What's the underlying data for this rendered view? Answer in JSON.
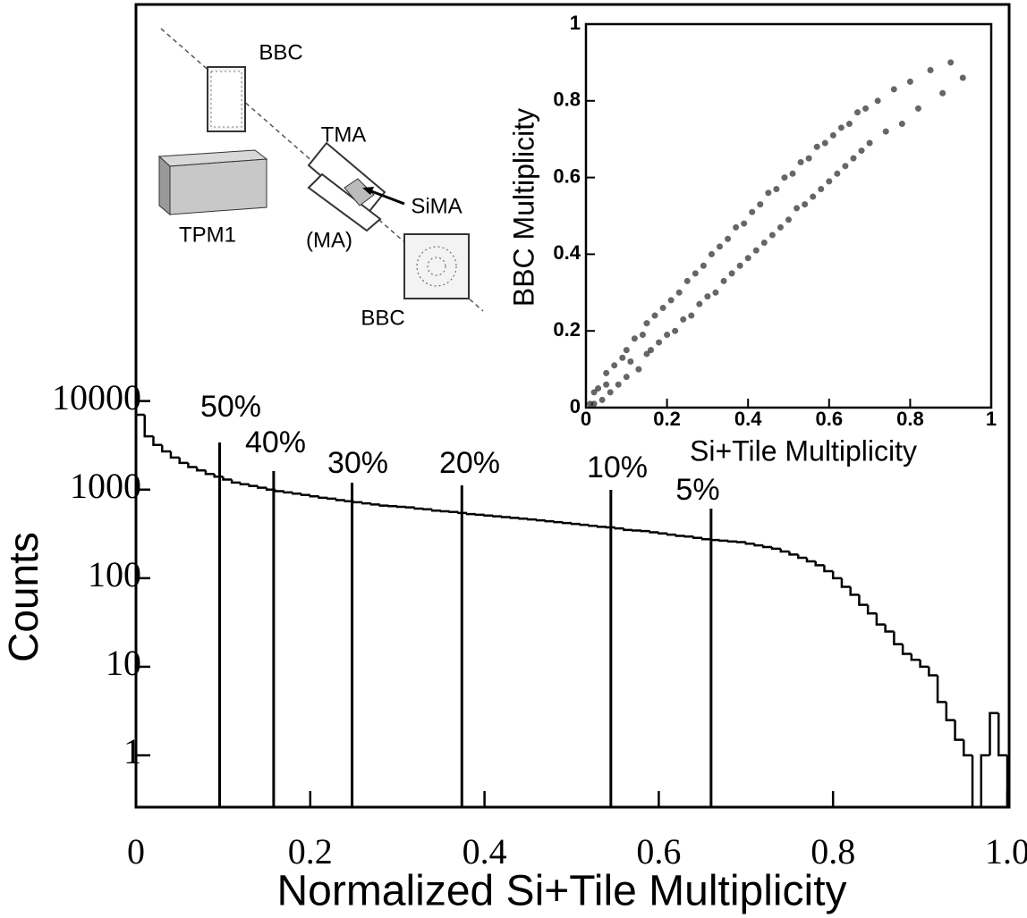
{
  "chart_data": [
    {
      "type": "histogram",
      "xlabel": "Normalized Si+Tile Multiplicity",
      "ylabel": "Counts",
      "log_y": true,
      "color": "#000000",
      "bins": [
        0,
        0.01,
        0.02,
        0.03,
        0.04,
        0.05,
        0.06,
        0.07,
        0.08,
        0.09,
        0.1,
        0.11,
        0.12,
        0.13,
        0.14,
        0.15,
        0.16,
        0.17,
        0.18,
        0.19,
        0.2,
        0.21,
        0.22,
        0.23,
        0.24,
        0.25,
        0.26,
        0.27,
        0.28,
        0.29,
        0.3,
        0.31,
        0.32,
        0.33,
        0.34,
        0.35,
        0.36,
        0.37,
        0.38,
        0.39,
        0.4,
        0.41,
        0.42,
        0.43,
        0.44,
        0.45,
        0.46,
        0.47,
        0.48,
        0.49,
        0.5,
        0.51,
        0.52,
        0.53,
        0.54,
        0.55,
        0.56,
        0.57,
        0.58,
        0.59,
        0.6,
        0.61,
        0.62,
        0.63,
        0.64,
        0.65,
        0.66,
        0.67,
        0.68,
        0.69,
        0.7,
        0.71,
        0.72,
        0.73,
        0.74,
        0.75,
        0.76,
        0.77,
        0.78,
        0.79,
        0.8,
        0.81,
        0.82,
        0.83,
        0.84,
        0.85,
        0.86,
        0.87,
        0.88,
        0.89,
        0.9,
        0.91,
        0.92,
        0.93,
        0.94,
        0.95,
        0.96,
        0.97,
        0.98,
        0.99,
        1
      ],
      "counts": [
        7000,
        4000,
        3200,
        2700,
        2300,
        2000,
        1800,
        1650,
        1500,
        1400,
        1300,
        1200,
        1150,
        1100,
        1050,
        1000,
        960,
        930,
        900,
        870,
        840,
        810,
        790,
        760,
        740,
        720,
        700,
        680,
        660,
        650,
        640,
        630,
        610,
        600,
        580,
        570,
        560,
        545,
        530,
        520,
        510,
        500,
        490,
        480,
        470,
        460,
        450,
        440,
        430,
        420,
        410,
        400,
        390,
        380,
        375,
        365,
        350,
        345,
        340,
        330,
        320,
        310,
        300,
        295,
        285,
        275,
        270,
        265,
        260,
        255,
        245,
        235,
        225,
        215,
        200,
        185,
        170,
        155,
        140,
        120,
        100,
        80,
        65,
        50,
        40,
        30,
        25,
        18,
        14,
        12,
        10,
        8,
        4,
        2.5,
        1.5,
        1,
        0,
        1,
        3,
        1
      ],
      "xlim": [
        0,
        1
      ],
      "xticks": [
        0,
        0.2,
        0.4,
        0.6,
        0.8,
        {
          "value": 1,
          "label": "1.0"
        }
      ],
      "ylim": [
        0.26,
        300000000
      ],
      "yticks": [
        1,
        10,
        100,
        1000,
        10000
      ],
      "markers": [
        {
          "label": "50%",
          "x": 0.096
        },
        {
          "label": "40%",
          "x": 0.158
        },
        {
          "label": "30%",
          "x": 0.248
        },
        {
          "label": "20%",
          "x": 0.374
        },
        {
          "label": "10%",
          "x": 0.545
        },
        {
          "label": "5%",
          "x": 0.66
        }
      ],
      "annotations": [
        "BBC",
        "TMA",
        "SiMA",
        "(MA)",
        "TPM1",
        "BBC"
      ]
    },
    {
      "type": "scatter",
      "xlabel": "Si+Tile Multiplicity",
      "ylabel": "BBC Multiplicity",
      "color": "#000000",
      "x": [
        0.01,
        0.02,
        0.02,
        0.03,
        0.04,
        0.05,
        0.05,
        0.06,
        0.07,
        0.08,
        0.09,
        0.1,
        0.1,
        0.11,
        0.12,
        0.13,
        0.14,
        0.15,
        0.15,
        0.16,
        0.17,
        0.18,
        0.19,
        0.2,
        0.21,
        0.22,
        0.23,
        0.24,
        0.25,
        0.26,
        0.27,
        0.28,
        0.29,
        0.3,
        0.31,
        0.32,
        0.33,
        0.34,
        0.35,
        0.36,
        0.37,
        0.38,
        0.39,
        0.4,
        0.41,
        0.42,
        0.43,
        0.44,
        0.45,
        0.46,
        0.47,
        0.48,
        0.49,
        0.5,
        0.51,
        0.52,
        0.53,
        0.54,
        0.55,
        0.56,
        0.57,
        0.58,
        0.59,
        0.6,
        0.61,
        0.62,
        0.63,
        0.64,
        0.65,
        0.66,
        0.67,
        0.68,
        0.69,
        0.7,
        0.72,
        0.74,
        0.76,
        0.78,
        0.8,
        0.82,
        0.85,
        0.88,
        0.9,
        0.93
      ],
      "y": [
        0.01,
        0.04,
        0.01,
        0.05,
        0.02,
        0.06,
        0.09,
        0.04,
        0.11,
        0.06,
        0.13,
        0.08,
        0.15,
        0.12,
        0.18,
        0.1,
        0.19,
        0.14,
        0.22,
        0.15,
        0.24,
        0.17,
        0.26,
        0.19,
        0.28,
        0.2,
        0.3,
        0.23,
        0.33,
        0.24,
        0.35,
        0.27,
        0.37,
        0.29,
        0.4,
        0.3,
        0.42,
        0.33,
        0.44,
        0.35,
        0.47,
        0.37,
        0.48,
        0.39,
        0.51,
        0.41,
        0.53,
        0.43,
        0.56,
        0.45,
        0.57,
        0.47,
        0.6,
        0.49,
        0.61,
        0.52,
        0.64,
        0.53,
        0.65,
        0.55,
        0.68,
        0.57,
        0.69,
        0.59,
        0.71,
        0.61,
        0.73,
        0.63,
        0.74,
        0.65,
        0.77,
        0.67,
        0.78,
        0.69,
        0.8,
        0.72,
        0.83,
        0.74,
        0.85,
        0.78,
        0.88,
        0.82,
        0.9,
        0.86
      ],
      "xlim": [
        0,
        1
      ],
      "xticks": [
        0,
        0.2,
        0.4,
        0.6,
        0.8,
        1
      ],
      "ylim": [
        0,
        1
      ],
      "yticks": [
        0,
        0.2,
        0.4,
        0.6,
        0.8,
        1
      ]
    }
  ]
}
